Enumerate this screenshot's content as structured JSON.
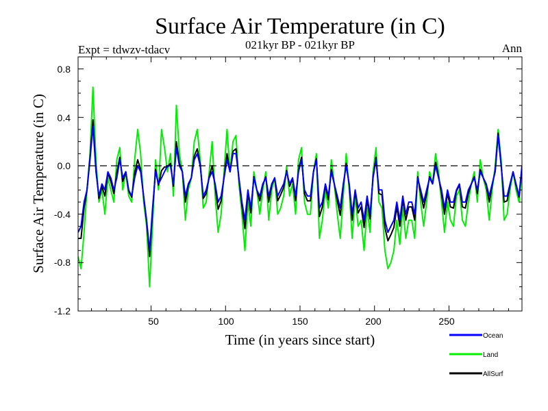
{
  "chart_data": {
    "type": "line",
    "title": "Surface Air Temperature (in C)",
    "subtitle": "021kyr BP - 021kyr BP",
    "experiment_label": "Expt = tdwzv-tdacv",
    "season_label": "Ann",
    "xlabel": "Time (in years since start)",
    "ylabel": "Surface Air Temperature (in C)",
    "xlim": [
      1,
      299
    ],
    "ylim": [
      -1.2,
      0.9
    ],
    "x_ticks": [
      50,
      100,
      150,
      200,
      250
    ],
    "x_tick_labels": [
      "50",
      "100",
      "150",
      "200",
      "250"
    ],
    "y_ticks": [
      -1.2,
      -0.8,
      -0.4,
      0.0,
      0.4,
      0.8
    ],
    "y_tick_labels": [
      "-1.2",
      "-0.8",
      "-0.4",
      "0.0",
      "0.4",
      "0.8"
    ],
    "zero_line": 0.0,
    "x_step": 2,
    "x_start": 1,
    "series": [
      {
        "name": "Ocean",
        "color": "#0000ff",
        "values": [
          -0.55,
          -0.5,
          -0.3,
          -0.2,
          0.05,
          0.33,
          -0.05,
          -0.25,
          -0.15,
          -0.2,
          -0.05,
          -0.1,
          -0.2,
          -0.1,
          0.05,
          -0.1,
          -0.05,
          -0.2,
          -0.25,
          -0.1,
          0.0,
          -0.05,
          -0.25,
          -0.45,
          -0.7,
          -0.35,
          -0.05,
          -0.15,
          -0.1,
          -0.05,
          0.0,
          0.0,
          -0.15,
          0.15,
          0.0,
          -0.05,
          -0.25,
          -0.15,
          -0.1,
          0.05,
          0.1,
          0.0,
          -0.25,
          -0.2,
          -0.1,
          -0.05,
          -0.15,
          -0.3,
          -0.25,
          -0.1,
          0.05,
          -0.05,
          0.1,
          0.1,
          -0.1,
          -0.3,
          -0.45,
          -0.2,
          -0.35,
          -0.1,
          -0.2,
          -0.25,
          -0.15,
          -0.1,
          -0.25,
          -0.15,
          -0.1,
          -0.25,
          -0.2,
          -0.15,
          -0.05,
          -0.15,
          -0.1,
          -0.25,
          -0.05,
          0.05,
          -0.2,
          -0.25,
          -0.25,
          -0.05,
          0.05,
          -0.35,
          -0.3,
          -0.15,
          -0.25,
          -0.05,
          -0.15,
          -0.25,
          -0.35,
          -0.15,
          0.0,
          -0.15,
          -0.4,
          -0.2,
          -0.35,
          -0.3,
          -0.45,
          -0.25,
          -0.4,
          -0.1,
          0.05,
          -0.2,
          -0.2,
          -0.45,
          -0.55,
          -0.5,
          -0.45,
          -0.3,
          -0.45,
          -0.25,
          -0.4,
          -0.3,
          -0.3,
          -0.4,
          -0.1,
          -0.2,
          -0.3,
          -0.2,
          -0.1,
          -0.15,
          0.0,
          -0.1,
          -0.2,
          -0.35,
          -0.2,
          -0.3,
          -0.3,
          -0.2,
          -0.15,
          -0.3,
          -0.3,
          -0.2,
          -0.15,
          -0.1,
          -0.2,
          -0.05,
          -0.1,
          -0.15,
          -0.25,
          -0.15,
          -0.05,
          0.25,
          0.0,
          -0.25,
          -0.25,
          -0.15,
          -0.05,
          -0.15,
          -0.25,
          0.0
        ]
      },
      {
        "name": "Land",
        "color": "#00ee00",
        "values": [
          -0.75,
          -0.85,
          -0.55,
          -0.2,
          0.1,
          0.65,
          0.05,
          -0.3,
          -0.2,
          -0.4,
          -0.1,
          -0.2,
          -0.3,
          0.05,
          0.15,
          -0.2,
          -0.05,
          -0.25,
          -0.3,
          0.05,
          0.3,
          0.1,
          -0.3,
          -0.5,
          -1.0,
          -0.5,
          0.05,
          -0.2,
          0.3,
          0.15,
          -0.05,
          0.1,
          -0.25,
          0.5,
          0.1,
          -0.05,
          -0.45,
          -0.2,
          -0.1,
          0.2,
          0.3,
          0.05,
          -0.35,
          -0.3,
          -0.05,
          0.2,
          -0.25,
          -0.55,
          -0.4,
          -0.05,
          0.3,
          -0.05,
          0.2,
          0.25,
          -0.15,
          -0.4,
          -0.7,
          -0.3,
          -0.5,
          -0.05,
          -0.2,
          -0.4,
          -0.2,
          -0.05,
          -0.45,
          -0.2,
          -0.1,
          -0.4,
          -0.35,
          -0.25,
          0.0,
          -0.25,
          -0.15,
          -0.4,
          0.05,
          0.15,
          -0.3,
          -0.4,
          -0.4,
          -0.05,
          0.1,
          -0.6,
          -0.45,
          -0.2,
          -0.35,
          0.05,
          -0.15,
          -0.4,
          -0.6,
          -0.25,
          0.1,
          -0.2,
          -0.6,
          -0.25,
          -0.5,
          -0.45,
          -0.7,
          -0.35,
          -0.55,
          -0.05,
          0.15,
          -0.3,
          -0.35,
          -0.7,
          -0.85,
          -0.8,
          -0.7,
          -0.45,
          -0.65,
          -0.35,
          -0.6,
          -0.45,
          -0.45,
          -0.6,
          -0.05,
          -0.3,
          -0.5,
          -0.3,
          -0.05,
          -0.15,
          0.1,
          -0.05,
          -0.3,
          -0.55,
          -0.3,
          -0.45,
          -0.5,
          -0.25,
          -0.2,
          -0.45,
          -0.5,
          -0.3,
          -0.15,
          -0.05,
          -0.3,
          0.05,
          -0.1,
          -0.2,
          -0.45,
          -0.2,
          0.0,
          0.3,
          0.05,
          -0.45,
          -0.4,
          -0.2,
          -0.05,
          -0.2,
          -0.3,
          -0.05
        ]
      },
      {
        "name": "AllSurf",
        "color": "#000000",
        "values": [
          -0.6,
          -0.6,
          -0.35,
          -0.2,
          0.07,
          0.38,
          -0.03,
          -0.27,
          -0.17,
          -0.25,
          -0.06,
          -0.13,
          -0.23,
          -0.06,
          0.07,
          -0.13,
          -0.05,
          -0.21,
          -0.26,
          -0.06,
          0.05,
          -0.03,
          -0.26,
          -0.46,
          -0.75,
          -0.38,
          -0.03,
          -0.16,
          -0.04,
          -0.01,
          -0.01,
          0.02,
          -0.17,
          0.2,
          0.02,
          -0.05,
          -0.3,
          -0.16,
          -0.1,
          0.08,
          0.14,
          0.01,
          -0.27,
          -0.23,
          -0.09,
          0.0,
          -0.17,
          -0.36,
          -0.29,
          -0.09,
          0.1,
          -0.05,
          0.12,
          0.14,
          -0.11,
          -0.33,
          -0.52,
          -0.23,
          -0.39,
          -0.09,
          -0.2,
          -0.29,
          -0.16,
          -0.09,
          -0.3,
          -0.16,
          -0.1,
          -0.29,
          -0.24,
          -0.18,
          -0.04,
          -0.17,
          -0.11,
          -0.29,
          -0.03,
          0.07,
          -0.23,
          -0.29,
          -0.29,
          -0.05,
          0.06,
          -0.42,
          -0.34,
          -0.16,
          -0.28,
          -0.03,
          -0.15,
          -0.29,
          -0.41,
          -0.17,
          0.02,
          -0.16,
          -0.45,
          -0.21,
          -0.39,
          -0.34,
          -0.51,
          -0.28,
          -0.44,
          -0.09,
          0.07,
          -0.23,
          -0.24,
          -0.51,
          -0.62,
          -0.57,
          -0.51,
          -0.34,
          -0.5,
          -0.28,
          -0.45,
          -0.34,
          -0.34,
          -0.45,
          -0.09,
          -0.23,
          -0.35,
          -0.23,
          -0.09,
          -0.15,
          0.03,
          -0.09,
          -0.23,
          -0.4,
          -0.23,
          -0.34,
          -0.35,
          -0.21,
          -0.16,
          -0.34,
          -0.35,
          -0.23,
          -0.15,
          -0.09,
          -0.23,
          -0.03,
          -0.1,
          -0.16,
          -0.3,
          -0.16,
          -0.04,
          0.27,
          0.01,
          -0.3,
          -0.29,
          -0.16,
          -0.05,
          -0.16,
          -0.26,
          -0.01
        ]
      }
    ],
    "legend_position": "bottom-right"
  }
}
